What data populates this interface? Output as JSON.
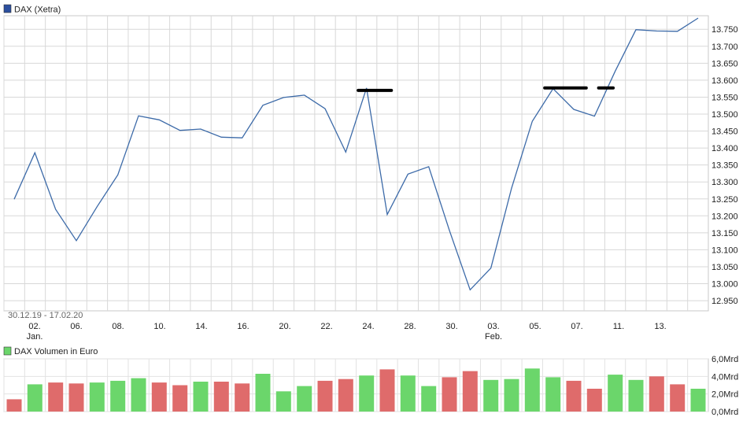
{
  "chart_data": [
    {
      "type": "line",
      "legend": "DAX (Xetra)",
      "date_range": "30.12.19 - 17.02.20",
      "x_ticks": [
        "02.",
        "06.",
        "08.",
        "10.",
        "14.",
        "16.",
        "20.",
        "22.",
        "24.",
        "28.",
        "30.",
        "03.",
        "05.",
        "07.",
        "11.",
        "13."
      ],
      "x_month_labels": [
        {
          "text": "Jan.",
          "under": "02."
        },
        {
          "text": "Feb.",
          "under": "03."
        }
      ],
      "y_ticks": [
        "12.950",
        "13.000",
        "13.050",
        "13.100",
        "13.150",
        "13.200",
        "13.250",
        "13.300",
        "13.350",
        "13.400",
        "13.450",
        "13.500",
        "13.550",
        "13.600",
        "13.650",
        "13.700",
        "13.750"
      ],
      "ylim": [
        12920,
        13790
      ],
      "values": [
        13249,
        13386,
        13219,
        13127,
        13227,
        13321,
        13495,
        13483,
        13452,
        13456,
        13432,
        13430,
        13526,
        13549,
        13556,
        13516,
        13388,
        13577,
        13204,
        13323,
        13345,
        13157,
        12982,
        13046,
        13282,
        13479,
        13575,
        13514,
        13494,
        13627,
        13749,
        13745,
        13744,
        13783
      ],
      "colors": {
        "line": "#3c6aa8",
        "legend_swatch": "#2b4f9e",
        "marker": "#000000",
        "grid": "#d8d8d8"
      },
      "annotations": [
        {
          "type": "horizontal-marker",
          "level": 13570,
          "from_index": 16.6,
          "to_index": 18.2
        },
        {
          "type": "horizontal-marker",
          "level": 13577,
          "from_index": 25.6,
          "to_index": 27.6
        },
        {
          "type": "horizontal-marker",
          "level": 13577,
          "from_index": 28.2,
          "to_index": 28.9
        }
      ]
    },
    {
      "type": "bar",
      "legend": "DAX Volumen in Euro",
      "unit": "Mrd",
      "y_ticks": [
        "0,0Mrd",
        "2,0Mrd",
        "4,0Mrd",
        "6,0Mrd"
      ],
      "ylim": [
        0,
        6
      ],
      "values": [
        1.4,
        3.1,
        3.3,
        3.2,
        3.3,
        3.5,
        3.8,
        3.3,
        3.0,
        3.4,
        3.4,
        3.2,
        4.3,
        2.3,
        2.9,
        3.5,
        3.7,
        4.1,
        4.8,
        4.1,
        2.9,
        3.9,
        4.6,
        3.6,
        3.7,
        4.9,
        3.9,
        3.5,
        2.6,
        4.2,
        3.6,
        4.0,
        3.1,
        2.6
      ],
      "up": [
        false,
        true,
        false,
        false,
        true,
        true,
        true,
        false,
        false,
        true,
        false,
        false,
        true,
        true,
        true,
        false,
        false,
        true,
        false,
        true,
        true,
        false,
        false,
        true,
        true,
        true,
        true,
        false,
        false,
        true,
        true,
        false,
        false,
        true
      ],
      "colors": {
        "up": "#6bd66b",
        "down": "#df6b6b",
        "legend_swatch": "#6bd66b"
      }
    }
  ]
}
